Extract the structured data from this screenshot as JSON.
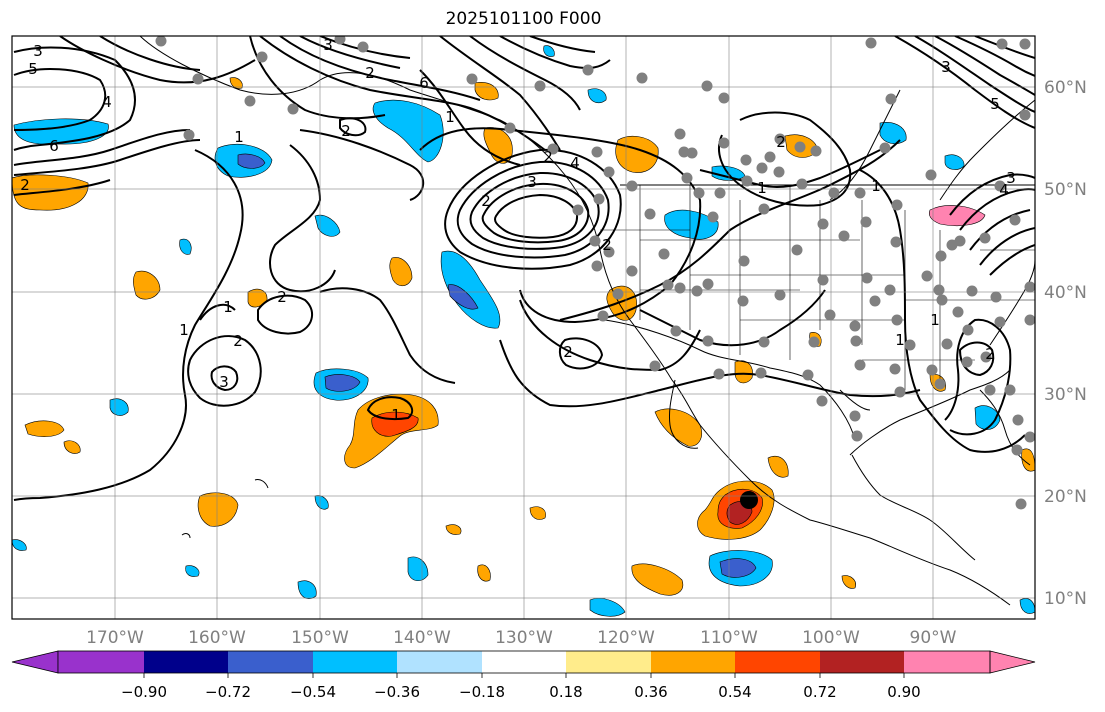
{
  "figure": {
    "title": "2025101100 F000"
  },
  "map": {
    "lon_labels": [
      "170°W",
      "160°W",
      "150°W",
      "140°W",
      "130°W",
      "120°W",
      "110°W",
      "100°W",
      "90°W"
    ],
    "lat_labels": [
      "60°N",
      "50°N",
      "40°N",
      "30°N",
      "20°N",
      "10°N"
    ],
    "lon_range": [
      -180,
      -80
    ],
    "lat_range": [
      8,
      66
    ],
    "gridlines": true,
    "contour_color": "#000000",
    "station_dot_color": "#808080",
    "marker_color": "#000000",
    "contour_labels": [
      "3",
      "5",
      "6",
      "4",
      "1",
      "6",
      "1",
      "2",
      "3",
      "2",
      "1",
      "1",
      "2",
      "1",
      "3",
      "2",
      "1",
      "2",
      "2",
      "2",
      "2",
      "1",
      "2",
      "4",
      "3",
      "2",
      "5",
      "3",
      "3",
      "2",
      "4",
      "1",
      "1"
    ]
  },
  "colorbar": {
    "ticks": [
      "−0.90",
      "−0.72",
      "−0.54",
      "−0.36",
      "−0.18",
      "0.18",
      "0.36",
      "0.54",
      "0.72",
      "0.90"
    ],
    "colors": [
      "#9932cc",
      "#00008b",
      "#3a5fcd",
      "#00bfff",
      "#b0e2ff",
      "#ffffff",
      "#ffec8b",
      "#ffa500",
      "#ff4500",
      "#b22222",
      "#ff83b0"
    ]
  }
}
